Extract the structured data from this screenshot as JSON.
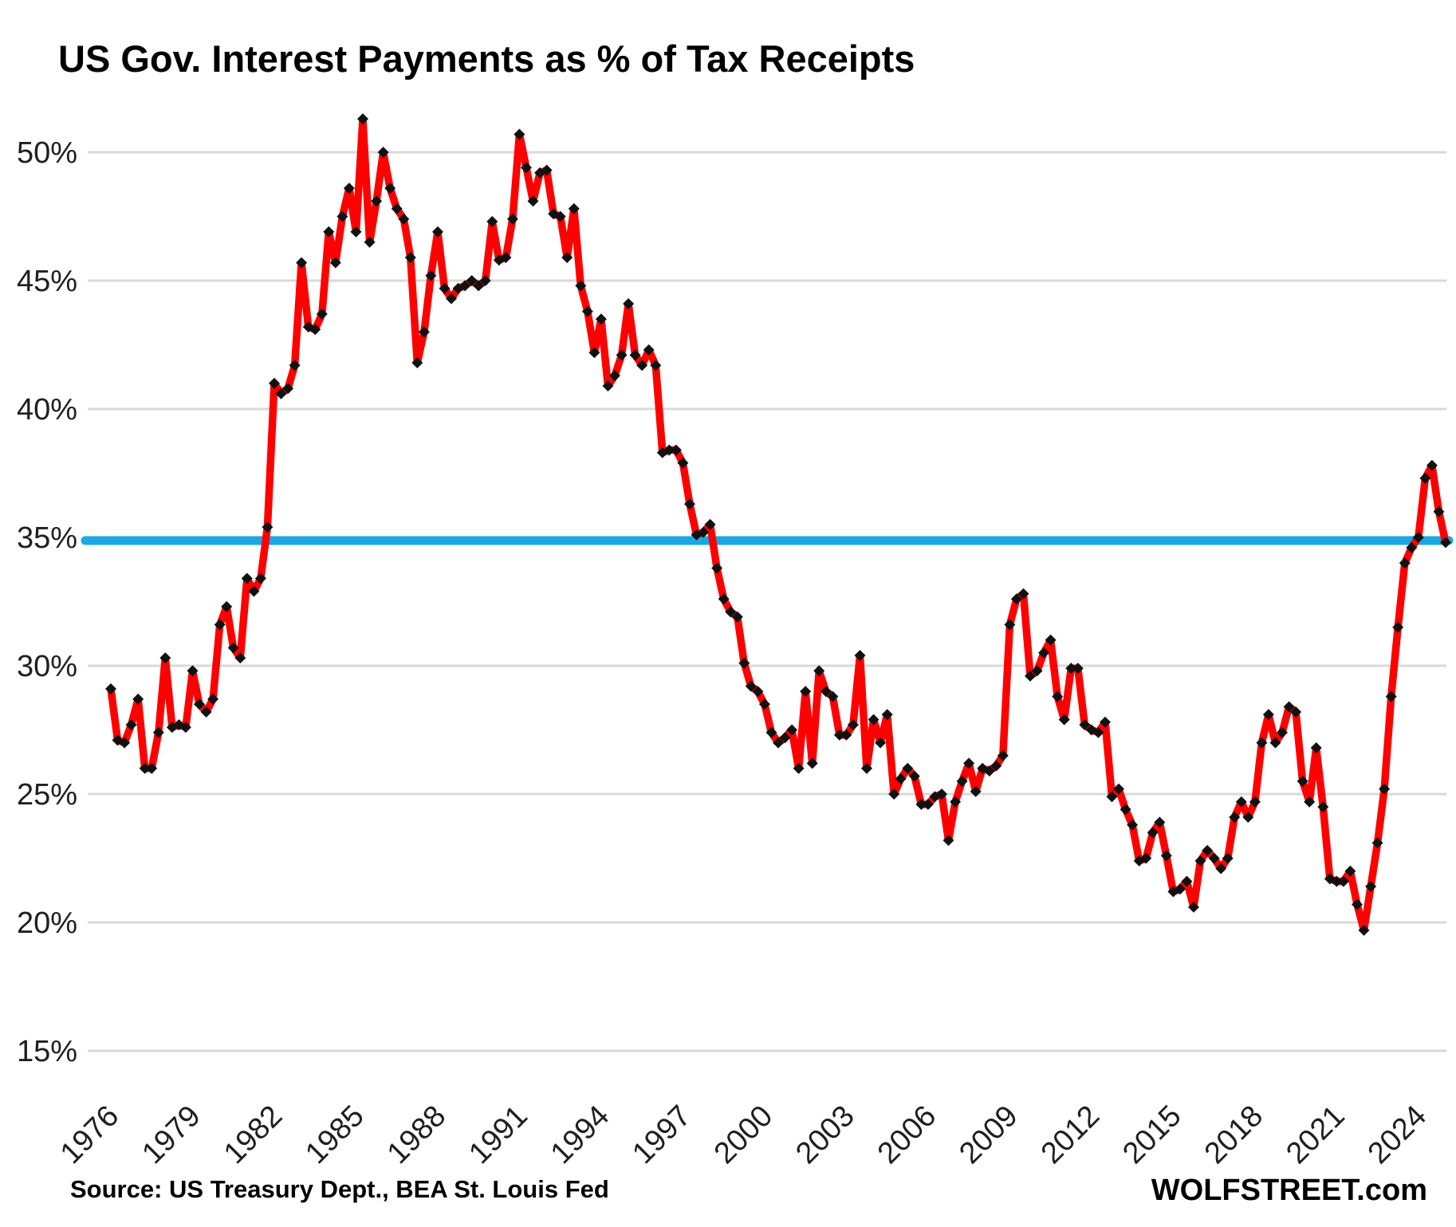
{
  "title": "US Gov. Interest Payments as % of Tax Receipts",
  "footer": {
    "source": "Source: US Treasury Dept., BEA St. Louis Fed",
    "branding": "WOLFSTREET.com"
  },
  "colors": {
    "series_line": "#FF0000",
    "marker": "#111111",
    "reference_line": "#1BA8E2",
    "gridline": "#D9D9D9",
    "axis_text": "#1f1f1f",
    "background": "#FFFFFF"
  },
  "chart_data": {
    "type": "line",
    "title": "US Gov. Interest Payments as % of Tax Receipts",
    "frequency": "quarterly",
    "start_year": 1976,
    "start_quarter": 1,
    "end_year": 2025,
    "end_quarter": 1,
    "unit": "percent",
    "grid": "horizontal",
    "legend": "none",
    "ylim": [
      15,
      52.5
    ],
    "y_ticks": [
      {
        "label": "50%",
        "value": 50
      },
      {
        "label": "45%",
        "value": 45
      },
      {
        "label": "40%",
        "value": 40
      },
      {
        "label": "35%",
        "value": 35
      },
      {
        "label": "30%",
        "value": 30
      },
      {
        "label": "25%",
        "value": 25
      },
      {
        "label": "20%",
        "value": 20
      },
      {
        "label": "15%",
        "value": 15
      }
    ],
    "x_ticks": [
      1976,
      1979,
      1982,
      1985,
      1988,
      1991,
      1994,
      1997,
      2000,
      2003,
      2006,
      2009,
      2012,
      2015,
      2018,
      2021,
      2024
    ],
    "reference_line": {
      "value": 35,
      "color": "#1BA8E2"
    },
    "source": "Source: US Treasury Dept., BEA St. Louis Fed",
    "branding": "WOLFSTREET.com",
    "series": [
      {
        "name": "US government interest payments as % of tax receipts",
        "color": "#FF0000",
        "marker": "diamond",
        "marker_color": "#111111",
        "values": [
          29.1,
          27.1,
          27.0,
          27.7,
          28.7,
          26.0,
          26.0,
          27.4,
          30.3,
          27.6,
          27.7,
          27.6,
          29.8,
          28.5,
          28.2,
          28.7,
          31.6,
          32.3,
          30.7,
          30.3,
          33.4,
          32.9,
          33.4,
          35.4,
          41.0,
          40.6,
          40.8,
          41.7,
          45.7,
          43.2,
          43.1,
          43.7,
          46.9,
          45.7,
          47.5,
          48.6,
          46.9,
          51.3,
          46.5,
          48.1,
          50.0,
          48.6,
          47.8,
          47.4,
          45.9,
          41.8,
          43.0,
          45.2,
          46.9,
          44.7,
          44.3,
          44.7,
          44.8,
          45.0,
          44.8,
          45.0,
          47.3,
          45.8,
          45.9,
          47.4,
          50.7,
          49.4,
          48.1,
          49.2,
          49.3,
          47.6,
          47.5,
          45.9,
          47.8,
          44.8,
          43.8,
          42.2,
          43.5,
          40.9,
          41.3,
          42.1,
          44.1,
          42.1,
          41.7,
          42.3,
          41.7,
          38.3,
          38.4,
          38.4,
          37.9,
          36.3,
          35.1,
          35.2,
          35.5,
          33.8,
          32.6,
          32.1,
          31.9,
          30.1,
          29.2,
          29.0,
          28.5,
          27.4,
          27.0,
          27.2,
          27.5,
          26.0,
          29.0,
          26.2,
          29.8,
          29.0,
          28.8,
          27.3,
          27.3,
          27.7,
          30.4,
          26.0,
          27.9,
          27.0,
          28.1,
          25.0,
          25.6,
          26.0,
          25.7,
          24.6,
          24.6,
          24.9,
          25.0,
          23.2,
          24.7,
          25.5,
          26.2,
          25.1,
          26.0,
          25.9,
          26.1,
          26.5,
          31.6,
          32.6,
          32.8,
          29.6,
          29.8,
          30.5,
          31.0,
          28.8,
          27.9,
          29.9,
          29.9,
          27.7,
          27.5,
          27.4,
          27.8,
          24.9,
          25.2,
          24.4,
          23.8,
          22.4,
          22.5,
          23.5,
          23.9,
          22.6,
          21.2,
          21.3,
          21.6,
          20.6,
          22.4,
          22.8,
          22.5,
          22.1,
          22.5,
          24.1,
          24.7,
          24.1,
          24.7,
          27.0,
          28.1,
          27.0,
          27.4,
          28.4,
          28.2,
          25.5,
          24.7,
          26.8,
          24.5,
          21.7,
          21.6,
          21.6,
          22.0,
          20.7,
          19.7,
          21.4,
          23.1,
          25.2,
          28.8,
          31.5,
          34.0,
          34.6,
          35.0,
          37.3,
          37.8,
          36.0,
          34.8
        ]
      }
    ]
  }
}
